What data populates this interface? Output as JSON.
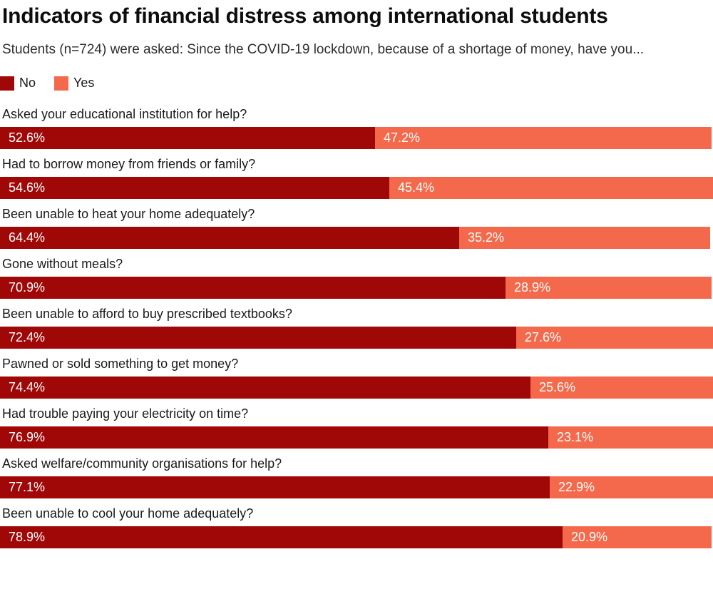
{
  "title": "Indicators of financial distress among international students",
  "subtitle": "Students (n=724) were asked: Since the COVID-19 lockdown, because of a shortage of money, have you...",
  "colors": {
    "no": "#A00808",
    "yes": "#F4694B",
    "value_text": "#ffffff",
    "background": "#ffffff"
  },
  "chart_data": {
    "type": "bar",
    "orientation": "horizontal-stacked",
    "title": "Indicators of financial distress among international students",
    "subtitle": "Students (n=724) were asked: Since the COVID-19 lockdown, because of a shortage of money, have you...",
    "legend_position": "top-left",
    "grid": false,
    "xlim": [
      0,
      100
    ],
    "value_suffix": "%",
    "categories": [
      "Asked your educational institution for help?",
      "Had to borrow money from friends or family?",
      "Been unable to heat your home adequately?",
      "Gone without meals?",
      "Been unable to afford to buy prescribed textbooks?",
      "Pawned or sold something to get money?",
      "Had trouble paying your electricity on time?",
      "Asked welfare/community organisations for help?",
      "Been unable to cool your home adequately?"
    ],
    "series": [
      {
        "name": "No",
        "color": "#A00808",
        "values": [
          52.6,
          54.6,
          64.4,
          70.9,
          72.4,
          74.4,
          76.9,
          77.1,
          78.9
        ]
      },
      {
        "name": "Yes",
        "color": "#F4694B",
        "values": [
          47.2,
          45.4,
          35.2,
          28.9,
          27.6,
          25.6,
          23.1,
          22.9,
          20.9
        ]
      }
    ]
  }
}
